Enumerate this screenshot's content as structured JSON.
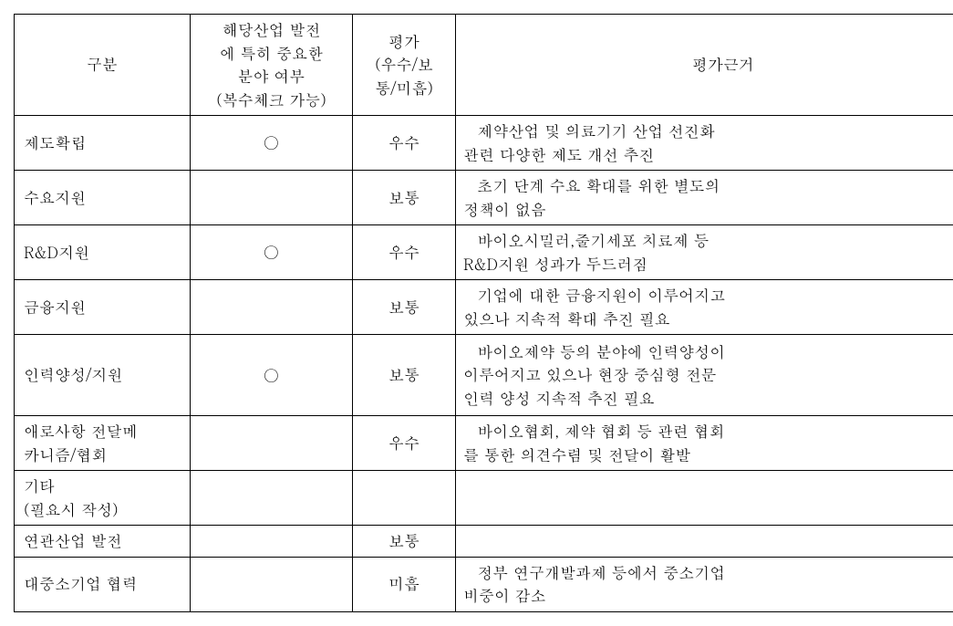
{
  "table": {
    "header": {
      "col0": "구분",
      "col1_line1": "해당산업 발전",
      "col1_line2": "에 특히 중요한",
      "col1_line3": "분야 여부",
      "col1_line4": "(복수체크 가능)",
      "col2_line1": "평가",
      "col2_line2": "(우수/보",
      "col2_line3": "통/미흡)",
      "col3": "평가근거"
    },
    "circle_mark": "○",
    "rows": [
      {
        "label": "제도확립",
        "important": true,
        "rating": "우수",
        "basis_l1": "제약산업 및 의료기기 산업 선진화",
        "basis_l2": "관련 다양한 제도 개선 추진"
      },
      {
        "label": "수요지원",
        "important": false,
        "rating": "보통",
        "basis_l1": "초기 단계 수요 확대를 위한 별도의",
        "basis_l2": "정책이 없음"
      },
      {
        "label": "R&D지원",
        "important": true,
        "rating": "우수",
        "basis_l1": "바이오시밀러,줄기세포   치료제   등",
        "basis_l2": "R&D지원 성과가 두드러짐"
      },
      {
        "label": "금융지원",
        "important": false,
        "rating": "보통",
        "basis_l1": "기업에 대한 금융지원이 이루어지고",
        "basis_l2": "있으나 지속적 확대 추진 필요"
      },
      {
        "label": "인력양성/지원",
        "important": true,
        "rating": "보통",
        "basis_l1": "바이오제약 등의 분야에 인력양성이",
        "basis_l2": "이루어지고 있으나 현장 중심형 전문",
        "basis_l3": "인력 양성 지속적 추진 필요"
      },
      {
        "label_l1": "애로사항  전달메",
        "label_l2": "카니즘/협회",
        "important": false,
        "rating": "우수",
        "basis_l1": "바이오협회, 제약 협회 등 관련 협회",
        "basis_l2": "를 통한 의견수렴 및 전달이 활발"
      },
      {
        "label_l1": "기타",
        "label_l2": "(필요시 작성)",
        "important": false,
        "rating": "",
        "basis_l1": ""
      },
      {
        "label": "연관산업 발전",
        "important": false,
        "rating": "보통",
        "basis_l1": ""
      },
      {
        "label": "대중소기업 협력",
        "important": false,
        "rating": "미흡",
        "basis_l1": "정부 연구개발과제 등에서 중소기업",
        "basis_l2": "비중이 감소"
      }
    ]
  }
}
